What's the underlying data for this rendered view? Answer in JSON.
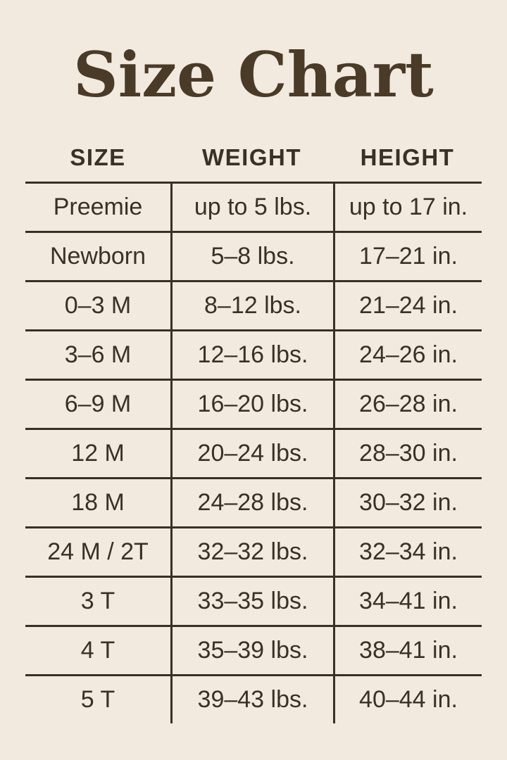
{
  "page": {
    "title": "Size Chart"
  },
  "colors": {
    "background": "#F2EADE",
    "title_text": "#4A3A28",
    "table_text": "#3A3027",
    "rule_line": "#3A2F23"
  },
  "chart_data": {
    "type": "table",
    "title": "Size Chart",
    "columns": [
      "SIZE",
      "WEIGHT",
      "HEIGHT"
    ],
    "rows": [
      [
        "Preemie",
        "up to 5 lbs.",
        "up to 17 in."
      ],
      [
        "Newborn",
        "5–8 lbs.",
        "17–21 in."
      ],
      [
        "0–3 M",
        "8–12 lbs.",
        "21–24 in."
      ],
      [
        "3–6 M",
        "12–16 lbs.",
        "24–26 in."
      ],
      [
        "6–9 M",
        "16–20 lbs.",
        "26–28 in."
      ],
      [
        "12 M",
        "20–24 lbs.",
        "28–30 in."
      ],
      [
        "18 M",
        "24–28 lbs.",
        "30–32 in."
      ],
      [
        "24 M / 2T",
        "32–32 lbs.",
        "32–34 in."
      ],
      [
        "3 T",
        "33–35 lbs.",
        "34–41 in."
      ],
      [
        "4 T",
        "35–39 lbs.",
        "38–41 in."
      ],
      [
        "5 T",
        "39–43 lbs.",
        "40–44 in."
      ]
    ],
    "layout": {
      "grid": "horizontal rules between all rows, vertical rules between columns in body only",
      "header_row_separated_by_top_rule": true,
      "outer_border": false
    }
  }
}
